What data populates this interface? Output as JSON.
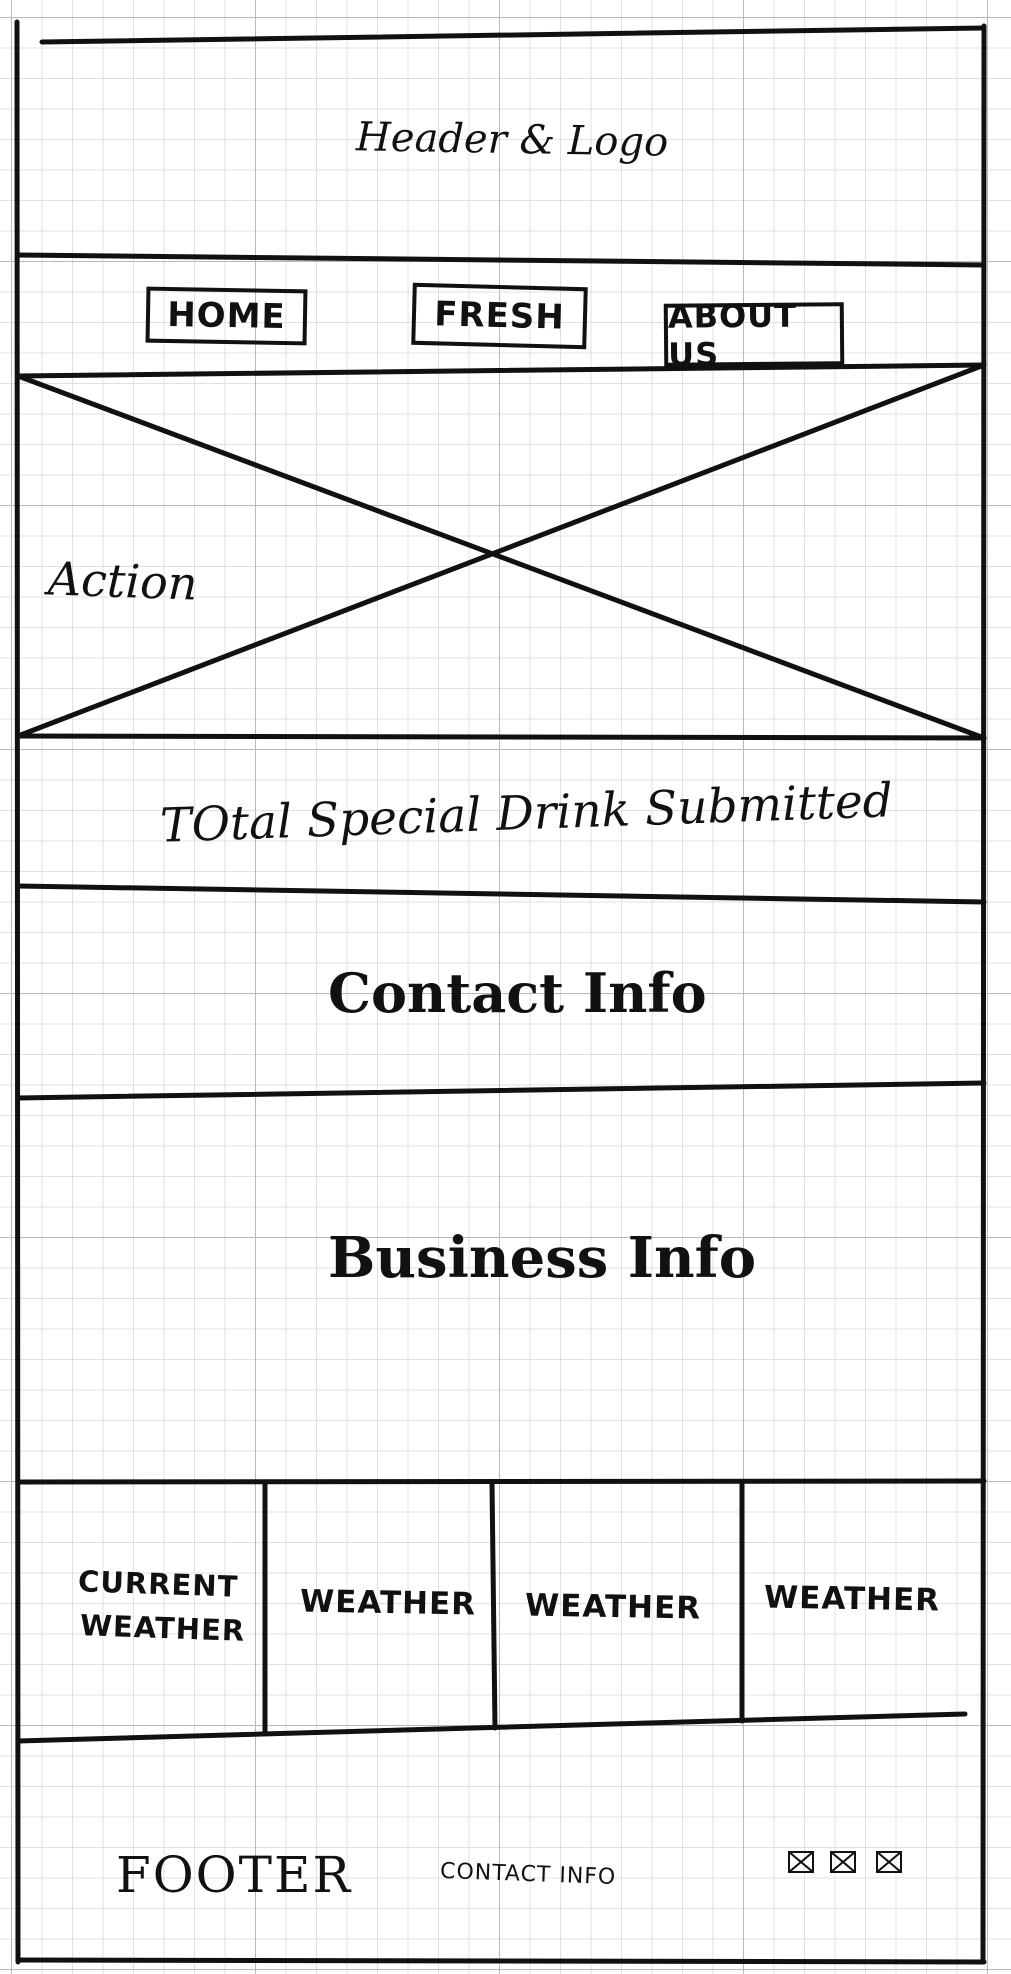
{
  "header": {
    "title": "Header & Logo"
  },
  "nav": {
    "home": "HOME",
    "fresh": "FRESH",
    "about": "ABOUT US"
  },
  "hero": {
    "label": "Action"
  },
  "stats": {
    "label": "TOtal Special Drink Submitted"
  },
  "contact": {
    "label": "Contact Info"
  },
  "business": {
    "label": "Business Info"
  },
  "weather": {
    "current_line1": "CURRENT",
    "current_line2": "WEATHER",
    "cell2": "WEATHER",
    "cell3": "WEATHER",
    "cell4": "WEATHER"
  },
  "footer": {
    "label": "FOOTER",
    "contact": "CONTACT INFO",
    "icons": [
      "image-placeholder-icon",
      "image-placeholder-icon",
      "image-placeholder-icon"
    ]
  }
}
